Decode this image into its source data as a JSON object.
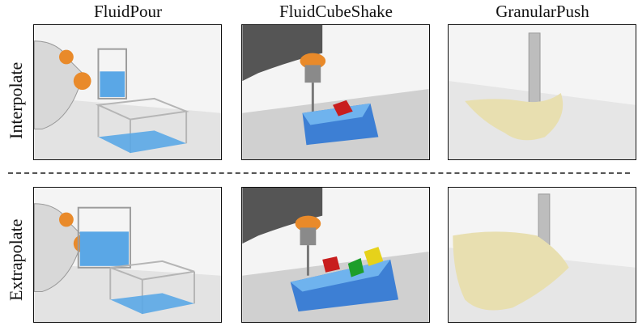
{
  "columns": [
    "FluidPour",
    "FluidCubeShake",
    "GranularPush"
  ],
  "rows": [
    "Interpolate",
    "Extrapolate"
  ],
  "colors": {
    "fluid": "#5aa7e6",
    "robot_orange": "#e98a2a",
    "robot_gray": "#7a7a7a",
    "cube_red": "#c81e1e",
    "cube_green": "#1e9e2a",
    "cube_yellow": "#e6d21a",
    "granular": "#e8dfb0"
  }
}
